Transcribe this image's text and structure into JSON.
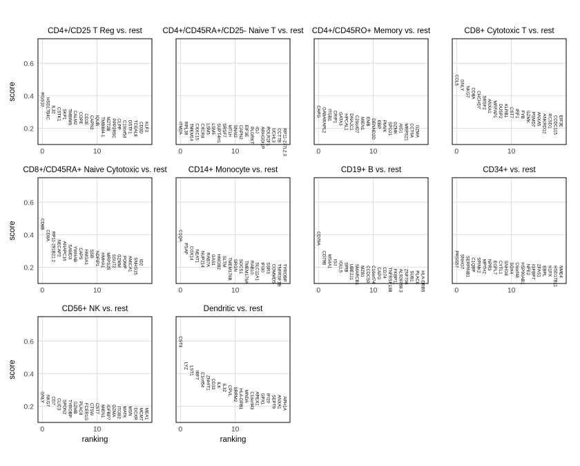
{
  "chart_data": [
    {
      "type": "scatter",
      "title": "CD4+/CD25 T Reg vs. rest",
      "genes": [
        "RGS10",
        "HSD17B4C",
        "IL32",
        "CSTK1",
        "SKP1",
        "TMBIM6",
        "CALM2",
        "COPE",
        "CD2E",
        "CAPN2",
        "IQUB",
        "TMBIM4-1",
        "MZT2B",
        "PPP2R5C",
        "CLPP",
        "C10orf54",
        "DSTF1",
        "TCEAL8",
        "CD3D",
        "KLF3"
      ],
      "scores": [
        0.42,
        0.39,
        0.34,
        0.33,
        0.32,
        0.32,
        0.31,
        0.3,
        0.29,
        0.28,
        0.28,
        0.27,
        0.27,
        0.26,
        0.26,
        0.25,
        0.25,
        0.25,
        0.24,
        0.24
      ]
    },
    {
      "type": "scatter",
      "title": "CD4+/CD45RA+/CD25- Naive T vs. rest",
      "genes": [
        "ITM2A",
        "RPL39",
        "TMEM14",
        "CXXC15",
        "CXCR4",
        "LSM5",
        "LSM5",
        "SUPT4H1",
        "SRSF7",
        "MT1H",
        "SNAI2",
        "CAPN2",
        "EIF3E",
        "PLGRKT",
        "IGJ",
        "ARHGDI1P",
        "POLR2F1",
        "UCHL3",
        "CCT7B",
        "RP11-277L2.3"
      ],
      "scores": [
        0.24,
        0.24,
        0.23,
        0.23,
        0.23,
        0.23,
        0.23,
        0.23,
        0.23,
        0.22,
        0.22,
        0.22,
        0.22,
        0.21,
        0.21,
        0.21,
        0.21,
        0.2,
        0.2,
        0.2
      ]
    },
    {
      "type": "scatter",
      "title": "CD4+/CD45RO+ Memory vs. rest",
      "genes": [
        "CAPG",
        "GABARAPL2",
        "ITGB1",
        "CRIP1",
        "GATA3",
        "HPCAL1",
        "DNAJC1",
        "C20orf27",
        "MIEN1",
        "EMB",
        "DENND2D",
        "EBP",
        "PMVK",
        "SPG21",
        "GZMK",
        "AIG1",
        "MRPS21",
        "CCT6A",
        "GZMA"
      ],
      "scores": [
        0.34,
        0.33,
        0.32,
        0.31,
        0.3,
        0.29,
        0.29,
        0.28,
        0.27,
        0.27,
        0.26,
        0.25,
        0.25,
        0.24,
        0.24,
        0.23,
        0.23,
        0.23,
        0.22
      ]
    },
    {
      "type": "scatter",
      "title": "CD8+ Cytotoxic T vs. rest",
      "genes": [
        "CCL5",
        "GNLY",
        "NKG7",
        "CD8A",
        "CHCHD7",
        "SRSF2",
        "ANXA1",
        "MRFAP1",
        "DUSP2",
        "KLRB1",
        "CST7",
        "IRF1",
        "FYB",
        "GZMK",
        "PSMD7",
        "ANXA5",
        "ANKRD12",
        "RCSD1",
        "CCDC115",
        "EIF3E"
      ],
      "scores": [
        0.53,
        0.5,
        0.46,
        0.45,
        0.43,
        0.4,
        0.38,
        0.37,
        0.35,
        0.35,
        0.33,
        0.32,
        0.31,
        0.31,
        0.3,
        0.3,
        0.29,
        0.29,
        0.28,
        0.28
      ]
    },
    {
      "type": "scatter",
      "title": "CD8+/CD45RA+ Naive Cytotoxic vs. rest",
      "genes": [
        "CD8B",
        "CD8A",
        "RP11-291B21.2",
        "NECAP2",
        "ANAPC16",
        "SAMD3",
        "YWHAB",
        "CAPS",
        "HMGA1",
        "SSB",
        "NDFIP1",
        "HMHA1",
        "MRPS25",
        "SSU72",
        "GZMM",
        "POMP",
        "AMICA1",
        "SNHG15",
        "ID2"
      ],
      "scores": [
        0.5,
        0.43,
        0.42,
        0.37,
        0.36,
        0.34,
        0.33,
        0.32,
        0.31,
        0.31,
        0.3,
        0.29,
        0.29,
        0.28,
        0.28,
        0.27,
        0.27,
        0.26,
        0.25
      ]
    },
    {
      "type": "scatter",
      "title": "CD14+ Monocyte vs. rest",
      "genes": [
        "C1QA",
        "PSAP",
        "COX14",
        "NEAT1",
        "NUP214",
        "RAB7A",
        "GAS1",
        "HMGB2",
        "SLTM",
        "TMEM176B",
        "SRGN",
        "SOCS1",
        "TMEM176A",
        "RAB10",
        "SLC11A1",
        "IFI30",
        "SSR3",
        "COMMD5",
        "TNFRSF1B",
        "TYROBP"
      ],
      "scores": [
        0.43,
        0.35,
        0.33,
        0.31,
        0.3,
        0.29,
        0.28,
        0.28,
        0.27,
        0.26,
        0.25,
        0.25,
        0.24,
        0.24,
        0.23,
        0.23,
        0.23,
        0.22,
        0.22,
        0.22
      ]
    },
    {
      "type": "scatter",
      "title": "CD19+ B vs. rest",
      "genes": [
        "CD79A",
        "CD79B",
        "MS4A1",
        "IGJ",
        "IGLL5",
        "SPIB",
        "UBE2J1",
        "SMARCB1",
        "MZB1",
        "CCDC50",
        "C16orf74",
        "CAPG",
        "CD74",
        "TNFRSF13B",
        "FKBP11",
        "AL928768.3",
        "ZNF706",
        "SUB1",
        "PLAC8",
        "HLA-DRB5"
      ],
      "scores": [
        0.42,
        0.3,
        0.28,
        0.25,
        0.24,
        0.23,
        0.22,
        0.22,
        0.21,
        0.21,
        0.21,
        0.2,
        0.2,
        0.2,
        0.19,
        0.19,
        0.19,
        0.18,
        0.18,
        0.18
      ]
    },
    {
      "type": "scatter",
      "title": "CD34+ vs. rest",
      "genes": [
        "PRSS57",
        "SNHG7",
        "SERPINB1",
        "C1QBP",
        "SPINK2",
        "MPTH2",
        "NPR3",
        "EGFL7",
        "CYTL1",
        "SNHG8",
        "SOX4",
        "C6orf48",
        "HSP90AB1",
        "NFE2",
        "IGFBP7",
        "ZFAS1",
        "EBPL",
        "H1FX",
        "HSD17B11",
        "NME4"
      ],
      "scores": [
        0.3,
        0.28,
        0.27,
        0.26,
        0.26,
        0.25,
        0.25,
        0.24,
        0.24,
        0.24,
        0.23,
        0.23,
        0.23,
        0.22,
        0.22,
        0.22,
        0.21,
        0.21,
        0.21,
        0.21
      ]
    },
    {
      "type": "scatter",
      "title": "CD56+ NK vs. rest",
      "genes": [
        "GNLY",
        "NKG7",
        "CD7",
        "CLIC3",
        "SPON2",
        "TYROBP",
        "GZMB",
        "PLAC8",
        "FCER1G",
        "CTSW",
        "CST7",
        "MIEN1",
        "IGFBP7",
        "GZMA",
        "ITGB2",
        "MATK",
        "MSN",
        "DCXR",
        "MCM7",
        "MEA1"
      ],
      "scores": [
        0.29,
        0.27,
        0.26,
        0.25,
        0.24,
        0.24,
        0.23,
        0.23,
        0.22,
        0.22,
        0.22,
        0.21,
        0.21,
        0.21,
        0.2,
        0.2,
        0.2,
        0.19,
        0.19,
        0.19
      ]
    },
    {
      "type": "scatter",
      "title": "Dendritic vs. rest",
      "genes": [
        "CST3",
        "LYZ",
        "LST1",
        "IRF7",
        "C1orf54",
        "ZNHIT1",
        "CD33",
        "ILK",
        "IL32",
        "CPVL",
        "SRRM2",
        "HLA-DPB1",
        "MNDA",
        "C16orf43",
        "APEX1",
        "GPX1",
        "IFI20",
        "SEPT9",
        "ANXA1",
        "APH1A"
      ],
      "scores": [
        0.63,
        0.47,
        0.45,
        0.42,
        0.41,
        0.39,
        0.37,
        0.35,
        0.34,
        0.33,
        0.32,
        0.31,
        0.3,
        0.29,
        0.29,
        0.28,
        0.28,
        0.27,
        0.27,
        0.26
      ]
    }
  ],
  "axes": {
    "ylabel": "score",
    "xlabel": "ranking",
    "yticks": [
      "0.2",
      "0.4",
      "0.6"
    ],
    "xticks": [
      "0",
      "10"
    ],
    "ylim": [
      0.1,
      0.75
    ],
    "xlim": [
      -0.8,
      20
    ]
  },
  "style": {
    "grid_color": "#d9d9d9",
    "frame_color": "#000000",
    "text_color": "#000000"
  }
}
